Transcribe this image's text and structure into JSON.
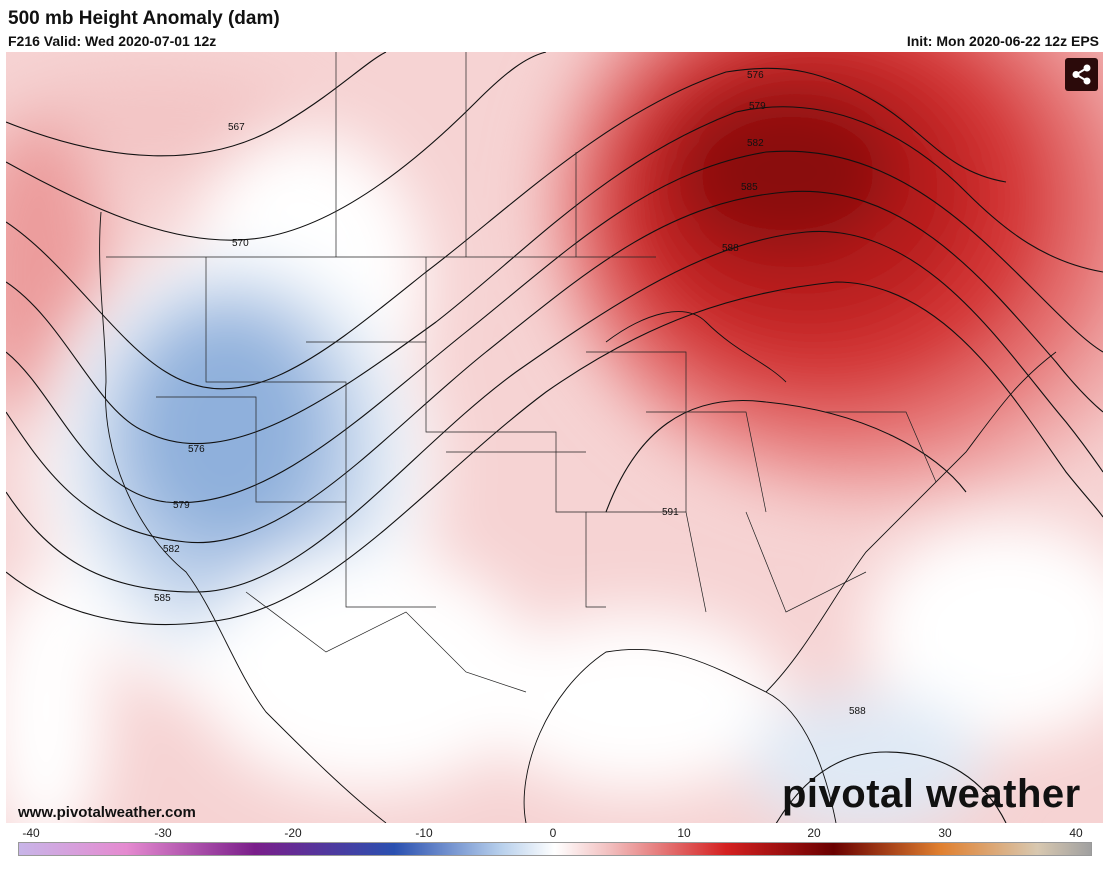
{
  "header": {
    "title": "500 mb Height Anomaly (dam)",
    "valid": "F216 Valid: Wed 2020-07-01 12z",
    "init": "Init: Mon 2020-06-22 12z EPS"
  },
  "map": {
    "contours": [
      {
        "label": "567"
      },
      {
        "label": "570"
      },
      {
        "label": "576"
      },
      {
        "label": "579"
      },
      {
        "label": "582"
      },
      {
        "label": "585"
      },
      {
        "label": "576"
      },
      {
        "label": "579"
      },
      {
        "label": "582"
      },
      {
        "label": "585"
      },
      {
        "label": "588"
      },
      {
        "label": "591"
      },
      {
        "label": "588"
      }
    ]
  },
  "footer": {
    "website": "www.pivotalweather.com",
    "logo": "pivotal weather",
    "share_icon": "share-icon"
  },
  "colorbar": {
    "ticks": [
      "-40",
      "-30",
      "-20",
      "-10",
      "0",
      "10",
      "20",
      "30",
      "40"
    ],
    "colors": {
      "neg_light": "#c8b5e8",
      "neg_pink": "#e58ad0",
      "neg_purple": "#7a1e8a",
      "neg_blue": "#2a50b0",
      "neg_lightblue": "#b8d0ec",
      "pos_pink": "#f2c0c0",
      "pos_red": "#d42020",
      "pos_dark": "#6a0000",
      "pos_orange": "#e08030",
      "pos_tan": "#d8c8b0"
    }
  }
}
